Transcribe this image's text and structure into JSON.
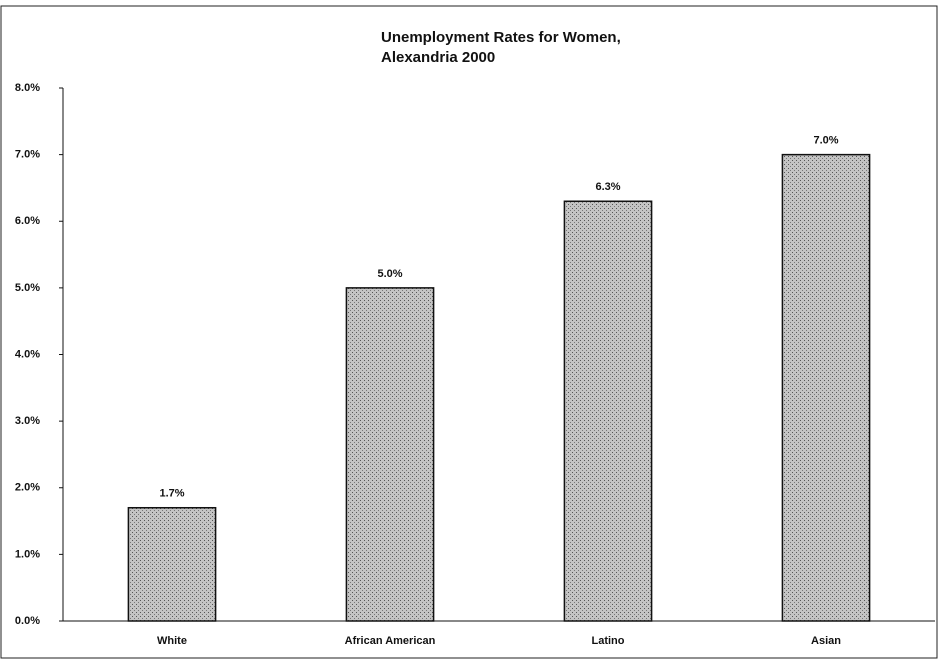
{
  "chart_data": {
    "type": "bar",
    "title": [
      "Unemployment Rates for Women,",
      "Alexandria 2000"
    ],
    "categories": [
      "White",
      "African American",
      "Latino",
      "Asian"
    ],
    "values": [
      1.7,
      5.0,
      6.3,
      7.0
    ],
    "value_labels": [
      "1.7%",
      "5.0%",
      "6.3%",
      "7.0%"
    ],
    "color": "#b9b9b9",
    "ylim": [
      0,
      8
    ],
    "yticks": [
      {
        "value": 0,
        "label": "0.0%"
      },
      {
        "value": 1,
        "label": "1.0%"
      },
      {
        "value": 2,
        "label": "2.0%"
      },
      {
        "value": 3,
        "label": "3.0%"
      },
      {
        "value": 4,
        "label": "4.0%"
      },
      {
        "value": 5,
        "label": "5.0%"
      },
      {
        "value": 6,
        "label": "6.0%"
      },
      {
        "value": 7,
        "label": "7.0%"
      },
      {
        "value": 8,
        "label": "8.0%"
      }
    ],
    "grid": false
  }
}
